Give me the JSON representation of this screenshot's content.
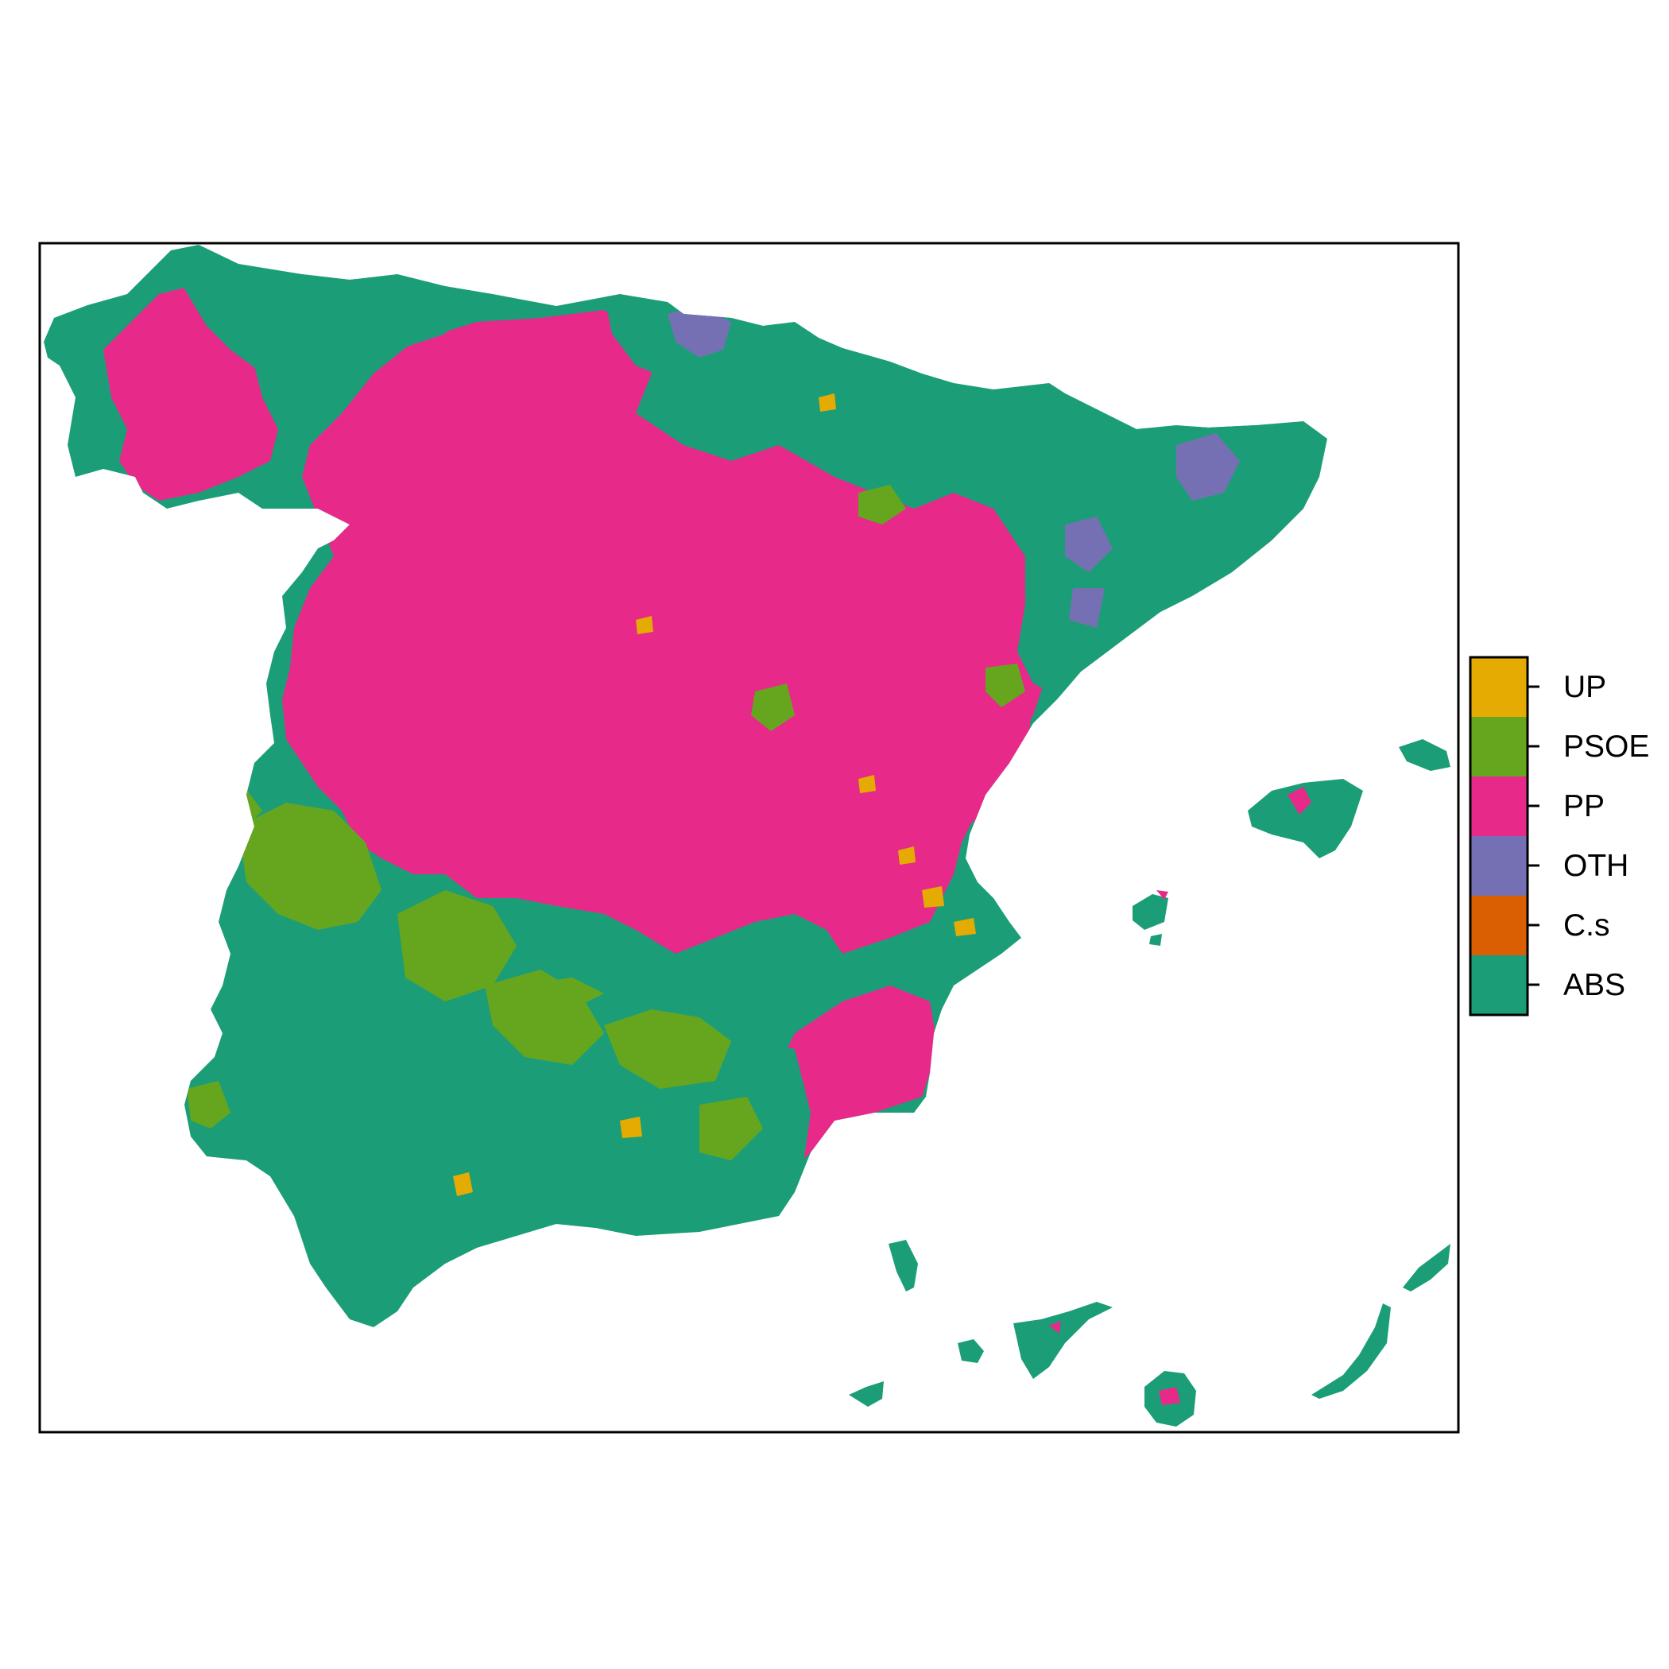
{
  "map": {
    "regions": "Spain (municipalities)",
    "colors": {
      "UP": "#E6AB02",
      "PSOE": "#66A61E",
      "PP": "#E7298A",
      "OTH": "#7570B3",
      "C.s": "#D95F02",
      "ABS": "#1B9E77"
    }
  },
  "legend": {
    "items": [
      {
        "label": "UP",
        "color": "#E6AB02"
      },
      {
        "label": "PSOE",
        "color": "#66A61E"
      },
      {
        "label": "PP",
        "color": "#E7298A"
      },
      {
        "label": "OTH",
        "color": "#7570B3"
      },
      {
        "label": "C.s",
        "color": "#D95F02"
      },
      {
        "label": "ABS",
        "color": "#1B9E77"
      }
    ]
  }
}
